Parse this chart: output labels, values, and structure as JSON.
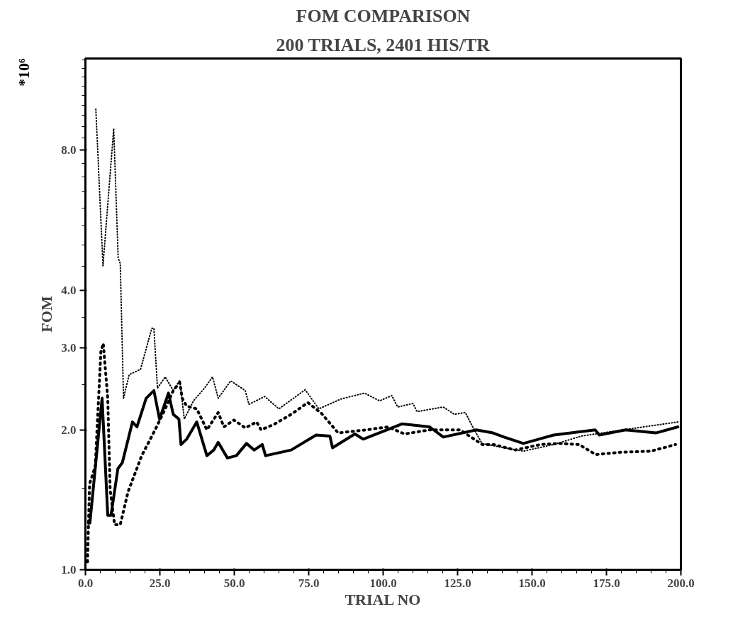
{
  "chart_data": {
    "type": "line",
    "title": "FOM COMPARISON",
    "subtitle": "200 TRIALS, 2401 HIS/TR",
    "xlabel": "TRIAL NO",
    "ylabel": "FOM",
    "annotations": [
      "*10⁶"
    ],
    "log": "y",
    "grid": false,
    "marker": "none",
    "xlim": [
      0,
      200
    ],
    "xticks": [
      {
        "value": 0,
        "label": "0.0"
      },
      {
        "value": 25,
        "label": "25.0"
      },
      {
        "value": 50,
        "label": "50.0"
      },
      {
        "value": 75,
        "label": "75.0"
      },
      {
        "value": 100,
        "label": "100.0"
      },
      {
        "value": 125,
        "label": "125.0"
      },
      {
        "value": 150,
        "label": "150.0"
      },
      {
        "value": 175,
        "label": "175.0"
      },
      {
        "value": 200,
        "label": "200.0"
      }
    ],
    "ylim": [
      1,
      12.6
    ],
    "yticks": [
      {
        "value": 1,
        "label": "1.0"
      },
      {
        "value": 2,
        "label": "2.0"
      },
      {
        "value": 3,
        "label": "3.0"
      },
      {
        "value": 4,
        "label": "4.0"
      },
      {
        "value": 8,
        "label": "8.0"
      }
    ],
    "series": [
      {
        "color": "#000000",
        "line_style": "solid",
        "x": [
          1.05,
          1.5,
          5.6,
          7.5,
          8.6,
          10.9,
          12.4,
          15.8,
          17.3,
          20.4,
          23,
          24.9,
          27.9,
          29.5,
          31.4,
          32.1,
          34,
          37.4,
          40.8,
          43.1,
          44.6,
          47.7,
          50.7,
          54.1,
          56.7,
          59.4,
          60.5,
          69.1,
          77.5,
          82.1,
          83,
          90.5,
          93.3,
          106.3,
          115.6,
          120.2,
          131.3,
          136.9,
          140.6,
          147.1,
          157.3,
          171.2,
          172.6,
          181.4,
          191.6,
          199
        ],
        "values": [
          1.26,
          1.26,
          2.34,
          1.31,
          1.31,
          1.65,
          1.7,
          2.08,
          2.03,
          2.34,
          2.43,
          2.11,
          2.4,
          2.16,
          2.11,
          1.86,
          1.91,
          2.08,
          1.76,
          1.81,
          1.88,
          1.74,
          1.76,
          1.87,
          1.81,
          1.86,
          1.76,
          1.81,
          1.95,
          1.94,
          1.83,
          1.96,
          1.91,
          2.06,
          2.03,
          1.93,
          2.0,
          1.97,
          1.93,
          1.87,
          1.95,
          2.0,
          1.95,
          2.0,
          1.97,
          2.03
        ]
      },
      {
        "color": "#000000",
        "line_style": "dashed",
        "x": [
          0.7,
          1.4,
          3.3,
          5.2,
          6,
          7.5,
          8.3,
          9.8,
          11.7,
          14.3,
          18.9,
          23.4,
          26.8,
          29.5,
          31.7,
          32.5,
          34,
          37.4,
          40.8,
          44.6,
          46.5,
          49.9,
          53.7,
          57.5,
          59,
          63.6,
          69.1,
          74.7,
          79.3,
          84.9,
          94.2,
          101.6,
          107.2,
          115.6,
          125.8,
          133.3,
          137,
          144.4,
          152.8,
          159.3,
          165.8,
          171.4,
          179.7,
          189.9,
          198.2
        ],
        "values": [
          1.04,
          1.53,
          1.67,
          2.95,
          3.07,
          2.34,
          1.49,
          1.25,
          1.25,
          1.47,
          1.76,
          2.0,
          2.22,
          2.43,
          2.53,
          2.34,
          2.25,
          2.22,
          2.0,
          2.18,
          2.03,
          2.1,
          2.02,
          2.08,
          2.0,
          2.06,
          2.16,
          2.29,
          2.17,
          1.97,
          2.0,
          2.03,
          1.96,
          2.0,
          2.0,
          1.86,
          1.86,
          1.81,
          1.86,
          1.87,
          1.86,
          1.77,
          1.79,
          1.8,
          1.86
        ]
      },
      {
        "color": "#000000",
        "line_style": "dotted",
        "x": [
          3.5,
          5.9,
          9.5,
          11,
          11.7,
          12.8,
          14.7,
          18.5,
          22.3,
          23,
          24.2,
          26.8,
          29.5,
          31.7,
          33.2,
          36.3,
          40,
          42.7,
          44.6,
          48.8,
          53.7,
          54.9,
          60.2,
          65,
          73.8,
          78.4,
          85.8,
          93.7,
          98.8,
          102.9,
          104.9,
          110,
          111.4,
          120.2,
          123.9,
          127.6,
          129.9,
          133.2,
          140.6,
          147.1,
          157.3,
          166.6,
          175.9,
          189.8,
          199
        ],
        "values": [
          9.8,
          4.51,
          8.9,
          4.69,
          4.56,
          2.34,
          2.63,
          2.7,
          3.31,
          3.31,
          2.46,
          2.6,
          2.43,
          2.56,
          2.11,
          2.31,
          2.46,
          2.6,
          2.34,
          2.55,
          2.43,
          2.27,
          2.36,
          2.22,
          2.44,
          2.22,
          2.33,
          2.4,
          2.31,
          2.37,
          2.24,
          2.28,
          2.19,
          2.24,
          2.16,
          2.18,
          2.04,
          1.87,
          1.83,
          1.8,
          1.86,
          1.94,
          1.98,
          2.04,
          2.08
        ]
      }
    ]
  }
}
